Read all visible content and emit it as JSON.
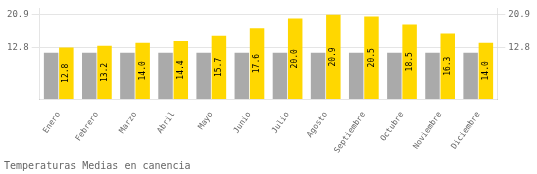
{
  "chart_data": {
    "type": "bar",
    "title": "Temperaturas Medias en canencia",
    "categories": [
      "Enero",
      "Febrero",
      "Marzo",
      "Abril",
      "Mayo",
      "Junio",
      "Julio",
      "Agosto",
      "Septiembre",
      "Octubre",
      "Noviembre",
      "Diciembre"
    ],
    "series": [
      {
        "color": "#AAAAAA",
        "values": [
          11.5,
          11.5,
          11.5,
          11.5,
          11.5,
          11.5,
          11.5,
          11.5,
          11.5,
          11.5,
          11.5,
          11.5
        ]
      },
      {
        "color": "#FFD700",
        "values": [
          12.8,
          13.2,
          14.0,
          14.4,
          15.7,
          17.6,
          20.0,
          20.9,
          20.5,
          18.5,
          16.3,
          14.0
        ],
        "value_labels": [
          "12.8",
          "13.2",
          "14.0",
          "14.4",
          "15.7",
          "17.6",
          "20.0",
          "20.9",
          "20.5",
          "18.5",
          "16.3",
          "14.0"
        ],
        "data_labels": true
      }
    ],
    "ylim": [
      0,
      22.5
    ],
    "yticks": [
      20.9,
      12.8
    ],
    "y2lim": [
      0,
      22.5
    ],
    "y2ticks": [
      20.9,
      12.8
    ],
    "grid": true
  }
}
